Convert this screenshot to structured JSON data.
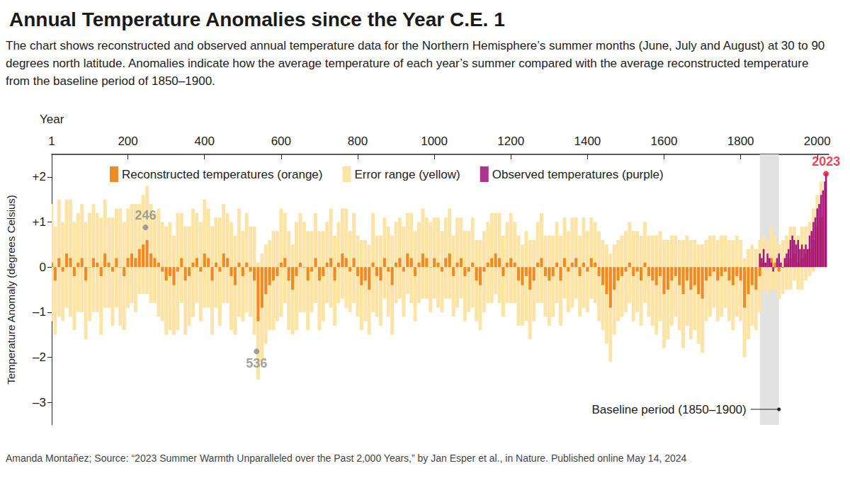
{
  "chart_data": {
    "type": "bar",
    "title": "Annual Temperature Anomalies since the Year C.E. 1",
    "subtitle": "The chart shows reconstructed and observed annual temperature data for the Northern Hemisphere’s summer months (June, July and August) at 30 to 90 degrees north latitude. Anomalies indicate how the average temperature of each year’s summer compared with the average reconstructed temperature from the baseline period of 1850–1900.",
    "source": "Amanda Montañez; Source: “2023 Summer Warmth Unparalleled over the Past 2,000 Years,” by Jan Esper et al., in Nature. Published online May 14, 2024",
    "x_label": "Year",
    "y_label": "Temperature Anomaly (degrees Celsius)",
    "xlim": [
      1,
      2030
    ],
    "xticks": [
      1,
      200,
      400,
      600,
      800,
      1000,
      1200,
      1400,
      1600,
      1800,
      2000
    ],
    "ylim": [
      -3.5,
      2.5
    ],
    "yticks": [
      {
        "value": -3,
        "label": "–3"
      },
      {
        "value": -2,
        "label": "–2"
      },
      {
        "value": -1,
        "label": "–1"
      },
      0,
      {
        "value": 1,
        "label": "+1"
      },
      {
        "value": 2,
        "label": "+2"
      }
    ],
    "grid": false,
    "legend": "top",
    "series": [
      {
        "name": "Reconstructed temperatures (orange)",
        "color": "#f28a24",
        "error_name": "Error range (yellow)",
        "error_color": "#fde3a4",
        "x": [
          1,
          10,
          20,
          30,
          40,
          50,
          60,
          70,
          80,
          90,
          100,
          110,
          120,
          130,
          140,
          150,
          160,
          170,
          180,
          190,
          200,
          210,
          220,
          230,
          240,
          250,
          260,
          270,
          280,
          290,
          300,
          310,
          320,
          330,
          340,
          350,
          360,
          370,
          380,
          390,
          400,
          410,
          420,
          430,
          440,
          450,
          460,
          470,
          480,
          490,
          500,
          510,
          520,
          530,
          540,
          550,
          560,
          570,
          580,
          590,
          600,
          610,
          620,
          630,
          640,
          650,
          660,
          670,
          680,
          690,
          700,
          710,
          720,
          730,
          740,
          750,
          760,
          770,
          780,
          790,
          800,
          810,
          820,
          830,
          840,
          850,
          860,
          870,
          880,
          890,
          900,
          910,
          920,
          930,
          940,
          950,
          960,
          970,
          980,
          990,
          1000,
          1010,
          1020,
          1030,
          1040,
          1050,
          1060,
          1070,
          1080,
          1090,
          1100,
          1110,
          1120,
          1130,
          1140,
          1150,
          1160,
          1170,
          1180,
          1190,
          1200,
          1210,
          1220,
          1230,
          1240,
          1250,
          1260,
          1270,
          1280,
          1290,
          1300,
          1310,
          1320,
          1330,
          1340,
          1350,
          1360,
          1370,
          1380,
          1390,
          1400,
          1410,
          1420,
          1430,
          1440,
          1450,
          1460,
          1470,
          1480,
          1490,
          1500,
          1510,
          1520,
          1530,
          1540,
          1550,
          1560,
          1570,
          1580,
          1590,
          1600,
          1610,
          1620,
          1630,
          1640,
          1650,
          1660,
          1670,
          1680,
          1690,
          1700,
          1710,
          1720,
          1730,
          1740,
          1750,
          1760,
          1770,
          1780,
          1790,
          1800,
          1810,
          1820,
          1830,
          1840,
          1850,
          1860,
          1870,
          1880,
          1890,
          1900,
          1910,
          1920,
          1930,
          1940,
          1950,
          1960,
          1970,
          1980,
          1990,
          2000,
          2010
        ],
        "values": [
          0.1,
          -0.3,
          0.2,
          -0.1,
          0.3,
          0.2,
          -0.2,
          0.1,
          0.2,
          -0.3,
          0.0,
          0.2,
          0.1,
          -0.2,
          0.3,
          0.1,
          -0.1,
          0.2,
          0.0,
          -0.2,
          0.2,
          0.3,
          0.2,
          0.4,
          0.5,
          0.6,
          0.3,
          0.2,
          0.1,
          -0.1,
          -0.3,
          -0.2,
          -0.4,
          -0.1,
          0.2,
          -0.3,
          -0.2,
          0.1,
          0.2,
          -0.1,
          0.3,
          0.2,
          -0.3,
          0.1,
          -0.1,
          0.3,
          0.2,
          -0.2,
          -0.4,
          0.1,
          -0.2,
          0.1,
          -0.1,
          -0.3,
          -1.2,
          -0.9,
          -0.6,
          -0.4,
          -0.3,
          -0.2,
          0.1,
          0.2,
          -0.3,
          -0.5,
          -0.2,
          0.1,
          0.0,
          -0.3,
          -0.1,
          0.2,
          -0.3,
          -0.2,
          0.1,
          0.2,
          -0.3,
          0.1,
          0.3,
          0.2,
          -0.1,
          0.2,
          -0.2,
          -0.4,
          -0.3,
          -0.5,
          0.1,
          -0.2,
          -0.3,
          0.2,
          -0.1,
          -0.4,
          0.1,
          0.2,
          -0.1,
          0.3,
          0.2,
          -0.2,
          0.1,
          0.3,
          0.2,
          0.0,
          0.2,
          0.1,
          -0.1,
          0.2,
          0.3,
          -0.2,
          0.1,
          0.2,
          -0.2,
          -0.1,
          0.1,
          -0.3,
          -0.4,
          -0.1,
          0.1,
          0.2,
          0.3,
          0.2,
          -0.2,
          0.1,
          0.2,
          0.1,
          -0.3,
          -0.4,
          -0.2,
          -0.5,
          -0.3,
          0.1,
          0.2,
          -0.2,
          -0.3,
          -0.2,
          0.1,
          -0.3,
          0.2,
          -0.1,
          0.1,
          0.2,
          -0.2,
          0.1,
          -0.1,
          0.2,
          0.1,
          -0.2,
          -0.4,
          -0.6,
          -0.9,
          -0.5,
          -0.3,
          -0.2,
          -0.1,
          0.1,
          -0.2,
          -0.1,
          -0.3,
          0.1,
          -0.2,
          -0.3,
          -0.4,
          -0.2,
          -0.6,
          -0.5,
          -0.3,
          -0.2,
          -0.4,
          -0.6,
          -0.3,
          -0.5,
          -0.4,
          -0.6,
          -0.7,
          -0.3,
          -0.2,
          -0.1,
          -0.3,
          -0.2,
          -0.1,
          -0.3,
          -0.4,
          -0.2,
          -0.3,
          -0.9,
          -0.6,
          -0.4,
          -0.5,
          -0.2,
          0.1,
          0.0,
          0.2,
          0.1,
          -0.1,
          0.0,
          0.1,
          0.2,
          0.3,
          0.1,
          0.2,
          0.3,
          0.4,
          0.6,
          0.9,
          1.1
        ],
        "error": [
          1.3,
          1.2,
          1.3,
          1.1,
          1.2,
          1.3,
          1.2,
          1.1,
          1.2,
          1.3,
          1.2,
          1.2,
          1.1,
          1.3,
          1.2,
          1.0,
          1.2,
          1.1,
          1.3,
          1.2,
          1.1,
          1.1,
          1.2,
          1.0,
          1.1,
          1.2,
          1.1,
          1.0,
          1.2,
          1.1,
          1.2,
          1.2,
          1.1,
          1.3,
          1.0,
          1.2,
          1.1,
          1.2,
          1.0,
          1.1,
          1.2,
          1.1,
          1.2,
          1.0,
          1.2,
          1.1,
          1.0,
          1.2,
          1.1,
          1.2,
          1.0,
          1.1,
          1.0,
          1.2,
          1.3,
          1.2,
          1.1,
          1.0,
          1.1,
          1.0,
          1.2,
          1.0,
          1.1,
          1.0,
          1.2,
          1.1,
          1.0,
          1.1,
          0.9,
          1.0,
          1.1,
          1.0,
          0.9,
          1.1,
          1.0,
          0.9,
          1.0,
          1.1,
          0.9,
          1.0,
          0.9,
          1.0,
          0.9,
          1.0,
          1.1,
          0.9,
          1.0,
          0.9,
          1.0,
          1.1,
          0.9,
          0.9,
          1.0,
          0.9,
          1.0,
          1.0,
          0.9,
          1.0,
          0.9,
          1.0,
          0.9,
          1.0,
          0.9,
          0.9,
          1.0,
          0.9,
          1.0,
          0.9,
          1.0,
          0.9,
          1.0,
          0.9,
          1.0,
          0.9,
          0.9,
          1.0,
          0.9,
          1.0,
          0.9,
          0.9,
          1.0,
          0.9,
          1.0,
          0.9,
          1.0,
          1.1,
          0.9,
          0.9,
          1.0,
          0.9,
          1.0,
          0.9,
          0.9,
          1.0,
          0.9,
          0.9,
          1.0,
          0.9,
          0.9,
          1.0,
          0.9,
          0.9,
          0.9,
          1.0,
          1.0,
          1.1,
          1.2,
          1.0,
          0.9,
          0.9,
          0.9,
          0.9,
          1.0,
          0.9,
          1.0,
          0.9,
          0.9,
          1.0,
          1.1,
          1.0,
          1.2,
          1.1,
          1.0,
          0.9,
          1.0,
          1.2,
          1.0,
          1.1,
          1.0,
          1.1,
          1.2,
          0.9,
          0.9,
          0.8,
          0.9,
          0.9,
          0.8,
          0.9,
          1.0,
          0.9,
          0.9,
          1.1,
          1.0,
          0.9,
          0.9,
          0.8,
          0.6,
          0.6,
          0.7,
          0.6,
          0.6,
          0.6,
          0.6,
          0.7,
          0.6,
          0.6,
          0.7,
          0.6,
          0.6,
          0.7,
          0.7,
          0.8
        ]
      },
      {
        "name": "Observed temperatures (purple)",
        "color": "#a3177f",
        "x": [
          1850,
          1855,
          1860,
          1865,
          1870,
          1875,
          1880,
          1885,
          1890,
          1895,
          1900,
          1905,
          1910,
          1915,
          1920,
          1925,
          1930,
          1935,
          1940,
          1945,
          1950,
          1955,
          1960,
          1965,
          1970,
          1975,
          1980,
          1985,
          1990,
          1995,
          2000,
          2005,
          2010,
          2015,
          2020,
          2023
        ],
        "values": [
          0.3,
          0.2,
          0.4,
          0.1,
          0.3,
          0.2,
          0.1,
          -0.1,
          0.0,
          0.2,
          0.3,
          0.1,
          0.0,
          0.2,
          0.3,
          0.4,
          0.6,
          0.7,
          0.6,
          0.5,
          0.6,
          0.4,
          0.5,
          0.4,
          0.5,
          0.4,
          0.7,
          0.8,
          1.0,
          1.1,
          1.3,
          1.4,
          1.6,
          1.7,
          1.9,
          2.07
        ]
      }
    ],
    "annotations": [
      {
        "x": 246,
        "y": 0.88,
        "label": "246",
        "color": "#8a8a8a"
      },
      {
        "x": 536,
        "y": -1.87,
        "label": "536",
        "color": "#8a8a8a"
      },
      {
        "x": 2023,
        "y": 2.07,
        "label": "2023",
        "color": "#e8102e"
      }
    ],
    "baseline": {
      "range": [
        1850,
        1900
      ],
      "label": "Baseline period (1850–1900)",
      "color": "#e2e2e2"
    }
  }
}
